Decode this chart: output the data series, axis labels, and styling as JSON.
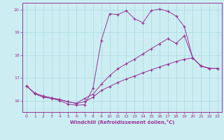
{
  "xlabel": "Windchill (Refroidissement éolien,°C)",
  "bg_color": "#cceef2",
  "grid_color": "#aad8de",
  "line_color": "#993399",
  "xlim": [
    -0.5,
    23.5
  ],
  "ylim": [
    15.5,
    20.3
  ],
  "yticks": [
    16,
    17,
    18,
    19,
    20
  ],
  "xticks": [
    0,
    1,
    2,
    3,
    4,
    5,
    6,
    7,
    8,
    9,
    10,
    11,
    12,
    13,
    14,
    15,
    16,
    17,
    18,
    19,
    20,
    21,
    22,
    23
  ],
  "line1_x": [
    0,
    1,
    2,
    3,
    4,
    5,
    6,
    7,
    8,
    9,
    10,
    11,
    12,
    13,
    14,
    15,
    16,
    17,
    18,
    19,
    20,
    21,
    22,
    23
  ],
  "line1_y": [
    16.65,
    16.3,
    16.15,
    16.1,
    16.0,
    15.85,
    15.8,
    15.82,
    16.55,
    18.65,
    19.82,
    19.78,
    19.95,
    19.6,
    19.42,
    19.95,
    20.03,
    19.93,
    19.72,
    19.25,
    17.88,
    17.52,
    17.42,
    17.42
  ],
  "line2_x": [
    0,
    1,
    2,
    3,
    4,
    5,
    6,
    7,
    8,
    9,
    10,
    11,
    12,
    13,
    14,
    15,
    16,
    17,
    18,
    19,
    20,
    21,
    22,
    23
  ],
  "line2_y": [
    16.65,
    16.32,
    16.2,
    16.12,
    16.05,
    15.95,
    15.88,
    16.1,
    16.28,
    16.72,
    17.1,
    17.4,
    17.62,
    17.82,
    18.05,
    18.28,
    18.5,
    18.72,
    18.52,
    18.85,
    17.88,
    17.52,
    17.42,
    17.42
  ],
  "line3_x": [
    0,
    1,
    2,
    3,
    4,
    5,
    6,
    7,
    8,
    9,
    10,
    11,
    12,
    13,
    14,
    15,
    16,
    17,
    18,
    19,
    20,
    21,
    22,
    23
  ],
  "line3_y": [
    16.65,
    16.32,
    16.2,
    16.12,
    16.05,
    15.95,
    15.88,
    15.95,
    16.15,
    16.45,
    16.62,
    16.8,
    16.95,
    17.08,
    17.22,
    17.35,
    17.48,
    17.6,
    17.72,
    17.82,
    17.88,
    17.52,
    17.42,
    17.42
  ]
}
